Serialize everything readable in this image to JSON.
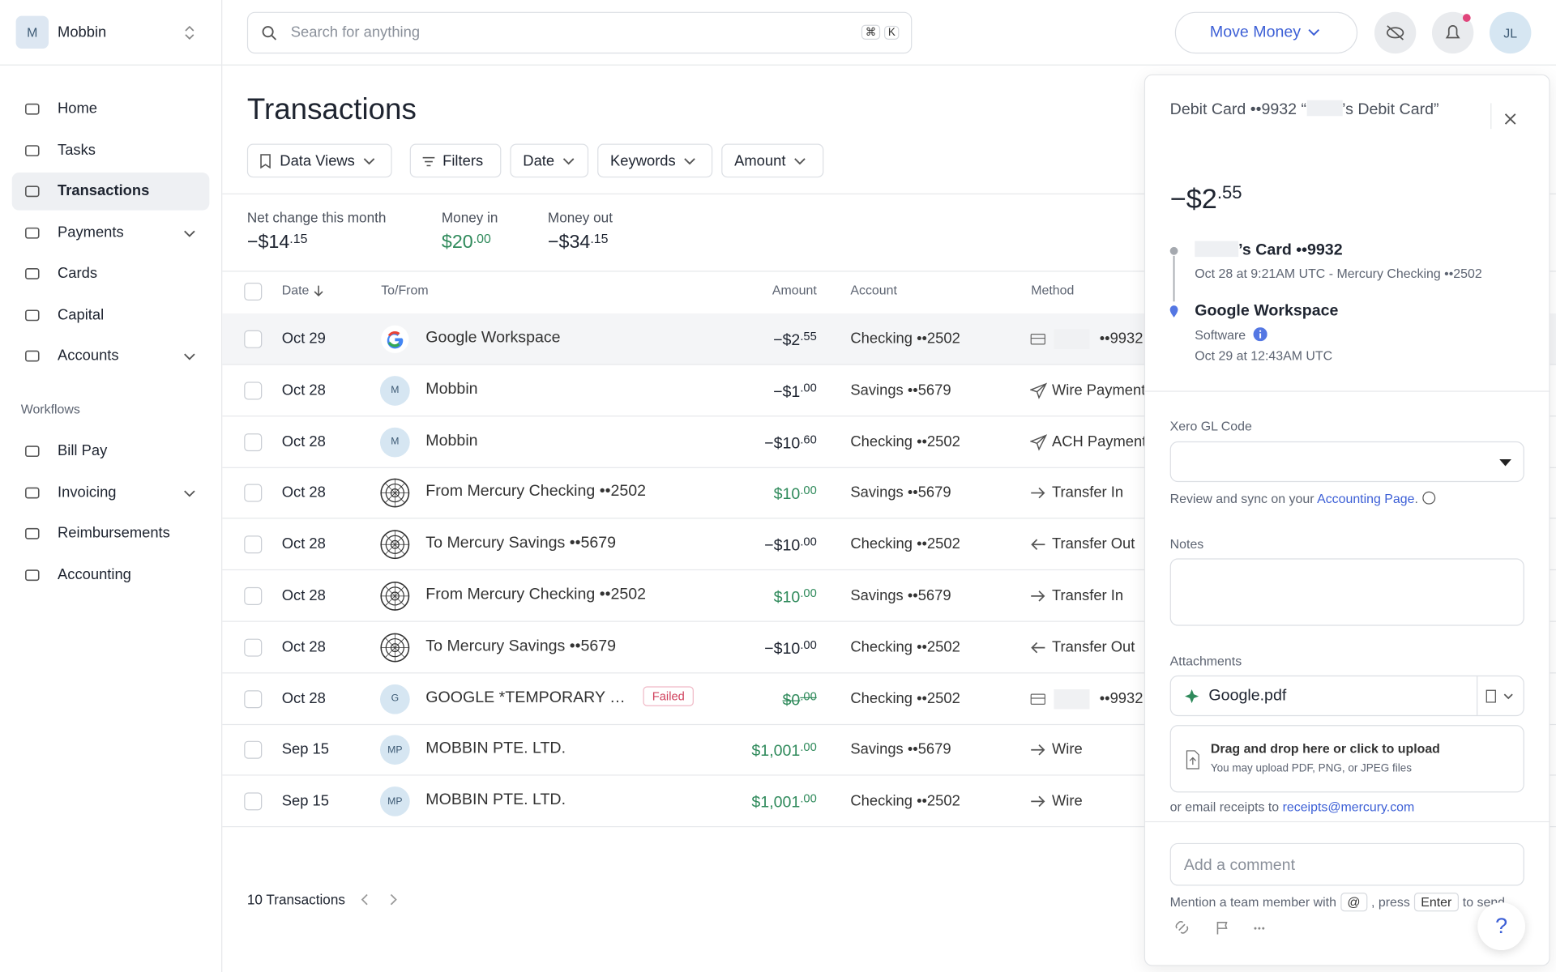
{
  "org": {
    "initial": "M",
    "name": "Mobbin"
  },
  "search": {
    "placeholder": "Search for anything",
    "shortcut": [
      "⌘",
      "K"
    ]
  },
  "topbar": {
    "move_money": "Move Money",
    "avatar": "JL"
  },
  "nav": {
    "main": [
      "Home",
      "Tasks",
      "Transactions",
      "Payments",
      "Cards",
      "Capital",
      "Accounts"
    ],
    "section": "Workflows",
    "workflows": [
      "Bill Pay",
      "Invoicing",
      "Reimbursements",
      "Accounting"
    ]
  },
  "page": {
    "title": "Transactions",
    "filters": [
      "Data Views",
      "Filters",
      "Date",
      "Keywords",
      "Amount"
    ],
    "summary": [
      {
        "label": "Net change this month",
        "main": "−$14",
        "cents": ".15"
      },
      {
        "label": "Money in",
        "main": "$20",
        "cents": ".00"
      },
      {
        "label": "Money out",
        "main": "−$34",
        "cents": ".15"
      }
    ],
    "columns": [
      "Date",
      "To/From",
      "Amount",
      "Account",
      "Method"
    ],
    "rows": [
      {
        "date": "Oct 29",
        "name": "Google Workspace",
        "main": "−$2",
        "cents": ".55",
        "account": "Checking ••2502",
        "method": "••9932"
      },
      {
        "date": "Oct 28",
        "avatar": "M",
        "name": "Mobbin",
        "main": "−$1",
        "cents": ".00",
        "account": "Savings ••5679",
        "method": "Wire Payment"
      },
      {
        "date": "Oct 28",
        "avatar": "M",
        "name": "Mobbin",
        "main": "−$10",
        "cents": ".60",
        "account": "Checking ••2502",
        "method": "ACH Payment"
      },
      {
        "date": "Oct 28",
        "name": "From Mercury Checking ••2502",
        "main": "$10",
        "cents": ".00",
        "account": "Savings ••5679",
        "method": "Transfer In"
      },
      {
        "date": "Oct 28",
        "name": "To Mercury Savings ••5679",
        "main": "−$10",
        "cents": ".00",
        "account": "Checking ••2502",
        "method": "Transfer Out"
      },
      {
        "date": "Oct 28",
        "name": "From Mercury Checking ••2502",
        "main": "$10",
        "cents": ".00",
        "account": "Savings ••5679",
        "method": "Transfer In"
      },
      {
        "date": "Oct 28",
        "name": "To Mercury Savings ••5679",
        "main": "−$10",
        "cents": ".00",
        "account": "Checking ••2502",
        "method": "Transfer Out"
      },
      {
        "date": "Oct 28",
        "avatar": "G",
        "name": "GOOGLE *TEMPORARY …",
        "badge": "Failed",
        "main": "$0",
        "cents": ".00",
        "account": "Checking ••2502",
        "method": "••9932"
      },
      {
        "date": "Sep 15",
        "avatar": "MP",
        "name": "MOBBIN PTE. LTD.",
        "main": "$1,001",
        "cents": ".00",
        "account": "Savings ••5679",
        "method": "Wire"
      },
      {
        "date": "Sep 15",
        "avatar": "MP",
        "name": "MOBBIN PTE. LTD.",
        "main": "$1,001",
        "cents": ".00",
        "account": "Checking ••2502",
        "method": "Wire"
      }
    ],
    "footer": "10 Transactions"
  },
  "panel": {
    "title_start": "Debit Card ••9932 “",
    "title_end": "’s Debit Card”",
    "main": "−$2",
    "cents": ".55",
    "from_name": "’s Card ••9932",
    "from_detail": "Oct 28 at 9:21AM UTC - Mercury Checking ••2502",
    "to_name": "Google Workspace",
    "to_category": "Software",
    "to_detail": "Oct 29 at 12:43AM UTC",
    "gl_label": "Xero GL Code",
    "gl_help": "Review and sync on your",
    "gl_link": "Accounting Page",
    "gl_end": ".",
    "notes_label": "Notes",
    "attachments_label": "Attachments",
    "file": "Google.pdf",
    "upload_title": "Drag and drop here or click to upload",
    "upload_sub": "You may upload PDF, PNG, or JPEG files",
    "email_text": "or email receipts to",
    "email_link": "receipts@mercury.com",
    "comment_placeholder": "Add a comment",
    "hint": [
      "Mention a team member with",
      "@",
      ", press",
      "Enter",
      "to send"
    ],
    "help": "?"
  }
}
